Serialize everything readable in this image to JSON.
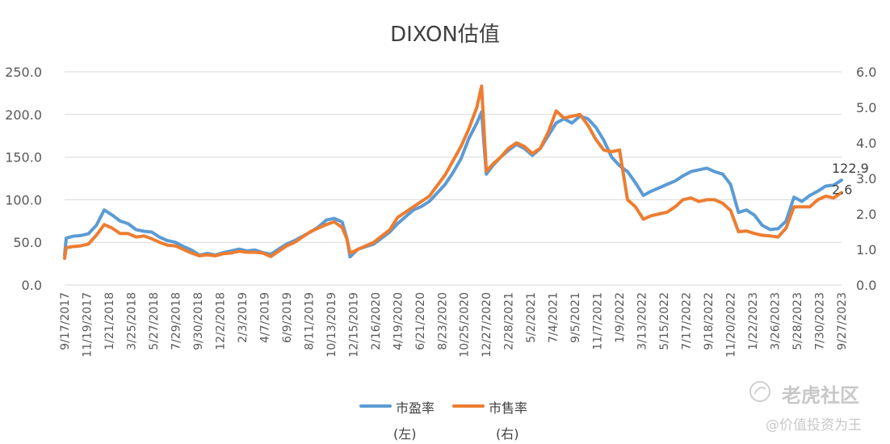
{
  "chart_data": {
    "type": "line",
    "title": "DIXON估值",
    "y_left": {
      "ticks": [
        "250.0",
        "200.0",
        "150.0",
        "100.0",
        "50.0",
        "0.0"
      ],
      "range": [
        0,
        250
      ]
    },
    "y_right": {
      "ticks": [
        "6.0",
        "5.0",
        "4.0",
        "3.0",
        "2.0",
        "1.0",
        "0.0"
      ],
      "range": [
        0,
        6
      ]
    },
    "x_tick_labels": [
      "9/17/2017",
      "11/19/2017",
      "1/21/2018",
      "3/25/2018",
      "5/27/2018",
      "7/29/2018",
      "9/30/2018",
      "12/2/2018",
      "2/3/2019",
      "4/7/2019",
      "6/9/2019",
      "8/11/2019",
      "10/13/2019",
      "12/15/2019",
      "2/16/2020",
      "4/19/2020",
      "6/21/2020",
      "8/23/2020",
      "10/25/2020",
      "12/27/2020",
      "2/28/2021",
      "5/2/2021",
      "7/4/2021",
      "9/5/2021",
      "11/7/2021",
      "1/9/2022",
      "3/13/2022",
      "5/15/2022",
      "7/17/2022",
      "9/18/2022",
      "11/20/2022",
      "1/22/2023",
      "3/26/2023",
      "5/28/2023",
      "7/30/2023",
      "9/27/2023"
    ],
    "series": [
      {
        "name": "市盈率",
        "sub": "(左)",
        "axis": "left",
        "color": "#5B9BD5",
        "last_label": "122.9",
        "points": [
          [
            0,
            35
          ],
          [
            0.1,
            55
          ],
          [
            0.5,
            57
          ],
          [
            1,
            58
          ],
          [
            1.5,
            60
          ],
          [
            2,
            70
          ],
          [
            2.5,
            88
          ],
          [
            3,
            82
          ],
          [
            3.5,
            75
          ],
          [
            4,
            72
          ],
          [
            4.5,
            65
          ],
          [
            5,
            63
          ],
          [
            5.5,
            62
          ],
          [
            6,
            56
          ],
          [
            6.5,
            52
          ],
          [
            7,
            50
          ],
          [
            7.5,
            45
          ],
          [
            8,
            41
          ],
          [
            8.5,
            35
          ],
          [
            9,
            37
          ],
          [
            9.5,
            35
          ],
          [
            10,
            38
          ],
          [
            10.5,
            40
          ],
          [
            11,
            42
          ],
          [
            11.5,
            40
          ],
          [
            12,
            41
          ],
          [
            12.5,
            38
          ],
          [
            13,
            36
          ],
          [
            13.5,
            42
          ],
          [
            14,
            48
          ],
          [
            14.5,
            52
          ],
          [
            15,
            57
          ],
          [
            15.5,
            62
          ],
          [
            16,
            68
          ],
          [
            16.5,
            76
          ],
          [
            17,
            78
          ],
          [
            17.5,
            74
          ],
          [
            17.8,
            55
          ],
          [
            18,
            33
          ],
          [
            18.5,
            42
          ],
          [
            19,
            45
          ],
          [
            19.5,
            48
          ],
          [
            20,
            55
          ],
          [
            20.5,
            62
          ],
          [
            21,
            72
          ],
          [
            21.5,
            80
          ],
          [
            22,
            88
          ],
          [
            22.5,
            92
          ],
          [
            23,
            98
          ],
          [
            23.5,
            108
          ],
          [
            24,
            118
          ],
          [
            24.5,
            132
          ],
          [
            25,
            148
          ],
          [
            25.5,
            172
          ],
          [
            26,
            190
          ],
          [
            26.3,
            203
          ],
          [
            26.6,
            130
          ],
          [
            27,
            140
          ],
          [
            27.5,
            150
          ],
          [
            28,
            158
          ],
          [
            28.5,
            165
          ],
          [
            29,
            160
          ],
          [
            29.5,
            152
          ],
          [
            30,
            160
          ],
          [
            30.5,
            175
          ],
          [
            31,
            190
          ],
          [
            31.5,
            195
          ],
          [
            32,
            190
          ],
          [
            32.5,
            198
          ],
          [
            33,
            195
          ],
          [
            33.5,
            185
          ],
          [
            34,
            170
          ],
          [
            34.5,
            150
          ],
          [
            35,
            140
          ],
          [
            35.5,
            133
          ],
          [
            36,
            120
          ],
          [
            36.5,
            105
          ],
          [
            37,
            110
          ],
          [
            37.5,
            114
          ],
          [
            38,
            118
          ],
          [
            38.5,
            122
          ],
          [
            39,
            128
          ],
          [
            39.5,
            133
          ],
          [
            40,
            135
          ],
          [
            40.5,
            137
          ],
          [
            41,
            133
          ],
          [
            41.5,
            130
          ],
          [
            42,
            118
          ],
          [
            42.5,
            85
          ],
          [
            43,
            88
          ],
          [
            43.5,
            82
          ],
          [
            44,
            70
          ],
          [
            44.5,
            65
          ],
          [
            45,
            66
          ],
          [
            45.5,
            75
          ],
          [
            46,
            103
          ],
          [
            46.5,
            98
          ],
          [
            47,
            105
          ],
          [
            47.5,
            110
          ],
          [
            48,
            116
          ],
          [
            48.5,
            117
          ],
          [
            49,
            122.9
          ]
        ]
      },
      {
        "name": "市售率",
        "sub": "(右)",
        "axis": "right",
        "color": "#ED7D31",
        "last_label": "2.6",
        "points": [
          [
            0,
            0.75
          ],
          [
            0.1,
            1.05
          ],
          [
            0.5,
            1.08
          ],
          [
            1,
            1.1
          ],
          [
            1.5,
            1.15
          ],
          [
            2,
            1.4
          ],
          [
            2.5,
            1.7
          ],
          [
            3,
            1.6
          ],
          [
            3.5,
            1.45
          ],
          [
            4,
            1.45
          ],
          [
            4.5,
            1.35
          ],
          [
            5,
            1.38
          ],
          [
            5.5,
            1.3
          ],
          [
            6,
            1.2
          ],
          [
            6.5,
            1.12
          ],
          [
            7,
            1.1
          ],
          [
            7.5,
            1.0
          ],
          [
            8,
            0.9
          ],
          [
            8.5,
            0.82
          ],
          [
            9,
            0.85
          ],
          [
            9.5,
            0.82
          ],
          [
            10,
            0.88
          ],
          [
            10.5,
            0.9
          ],
          [
            11,
            0.95
          ],
          [
            11.5,
            0.92
          ],
          [
            12,
            0.92
          ],
          [
            12.5,
            0.9
          ],
          [
            13,
            0.8
          ],
          [
            13.5,
            0.95
          ],
          [
            14,
            1.1
          ],
          [
            14.5,
            1.2
          ],
          [
            15,
            1.35
          ],
          [
            15.5,
            1.5
          ],
          [
            16,
            1.6
          ],
          [
            16.5,
            1.7
          ],
          [
            17,
            1.78
          ],
          [
            17.5,
            1.62
          ],
          [
            17.8,
            1.3
          ],
          [
            18,
            0.9
          ],
          [
            18.5,
            1.0
          ],
          [
            19,
            1.1
          ],
          [
            19.5,
            1.2
          ],
          [
            20,
            1.38
          ],
          [
            20.5,
            1.55
          ],
          [
            21,
            1.9
          ],
          [
            21.5,
            2.05
          ],
          [
            22,
            2.2
          ],
          [
            22.5,
            2.35
          ],
          [
            23,
            2.5
          ],
          [
            23.5,
            2.8
          ],
          [
            24,
            3.1
          ],
          [
            24.5,
            3.5
          ],
          [
            25,
            3.9
          ],
          [
            25.5,
            4.4
          ],
          [
            26,
            5.0
          ],
          [
            26.3,
            5.6
          ],
          [
            26.6,
            3.2
          ],
          [
            27,
            3.4
          ],
          [
            27.5,
            3.6
          ],
          [
            28,
            3.85
          ],
          [
            28.5,
            4.0
          ],
          [
            29,
            3.9
          ],
          [
            29.5,
            3.7
          ],
          [
            30,
            3.85
          ],
          [
            30.5,
            4.3
          ],
          [
            31,
            4.9
          ],
          [
            31.5,
            4.7
          ],
          [
            32,
            4.75
          ],
          [
            32.5,
            4.8
          ],
          [
            33,
            4.5
          ],
          [
            33.5,
            4.1
          ],
          [
            34,
            3.8
          ],
          [
            34.5,
            3.75
          ],
          [
            35,
            3.8
          ],
          [
            35.5,
            2.4
          ],
          [
            36,
            2.2
          ],
          [
            36.5,
            1.85
          ],
          [
            37,
            1.95
          ],
          [
            37.5,
            2.0
          ],
          [
            38,
            2.05
          ],
          [
            38.5,
            2.2
          ],
          [
            39,
            2.4
          ],
          [
            39.5,
            2.45
          ],
          [
            40,
            2.35
          ],
          [
            40.5,
            2.4
          ],
          [
            41,
            2.4
          ],
          [
            41.5,
            2.3
          ],
          [
            42,
            2.1
          ],
          [
            42.5,
            1.5
          ],
          [
            43,
            1.52
          ],
          [
            43.5,
            1.45
          ],
          [
            44,
            1.4
          ],
          [
            44.5,
            1.38
          ],
          [
            45,
            1.35
          ],
          [
            45.5,
            1.6
          ],
          [
            46,
            2.2
          ],
          [
            46.5,
            2.2
          ],
          [
            47,
            2.2
          ],
          [
            47.5,
            2.4
          ],
          [
            48,
            2.5
          ],
          [
            48.5,
            2.45
          ],
          [
            49,
            2.6
          ]
        ]
      }
    ]
  },
  "watermark": {
    "logo_text": "老虎社区",
    "user_text": "@价值投资为王"
  }
}
